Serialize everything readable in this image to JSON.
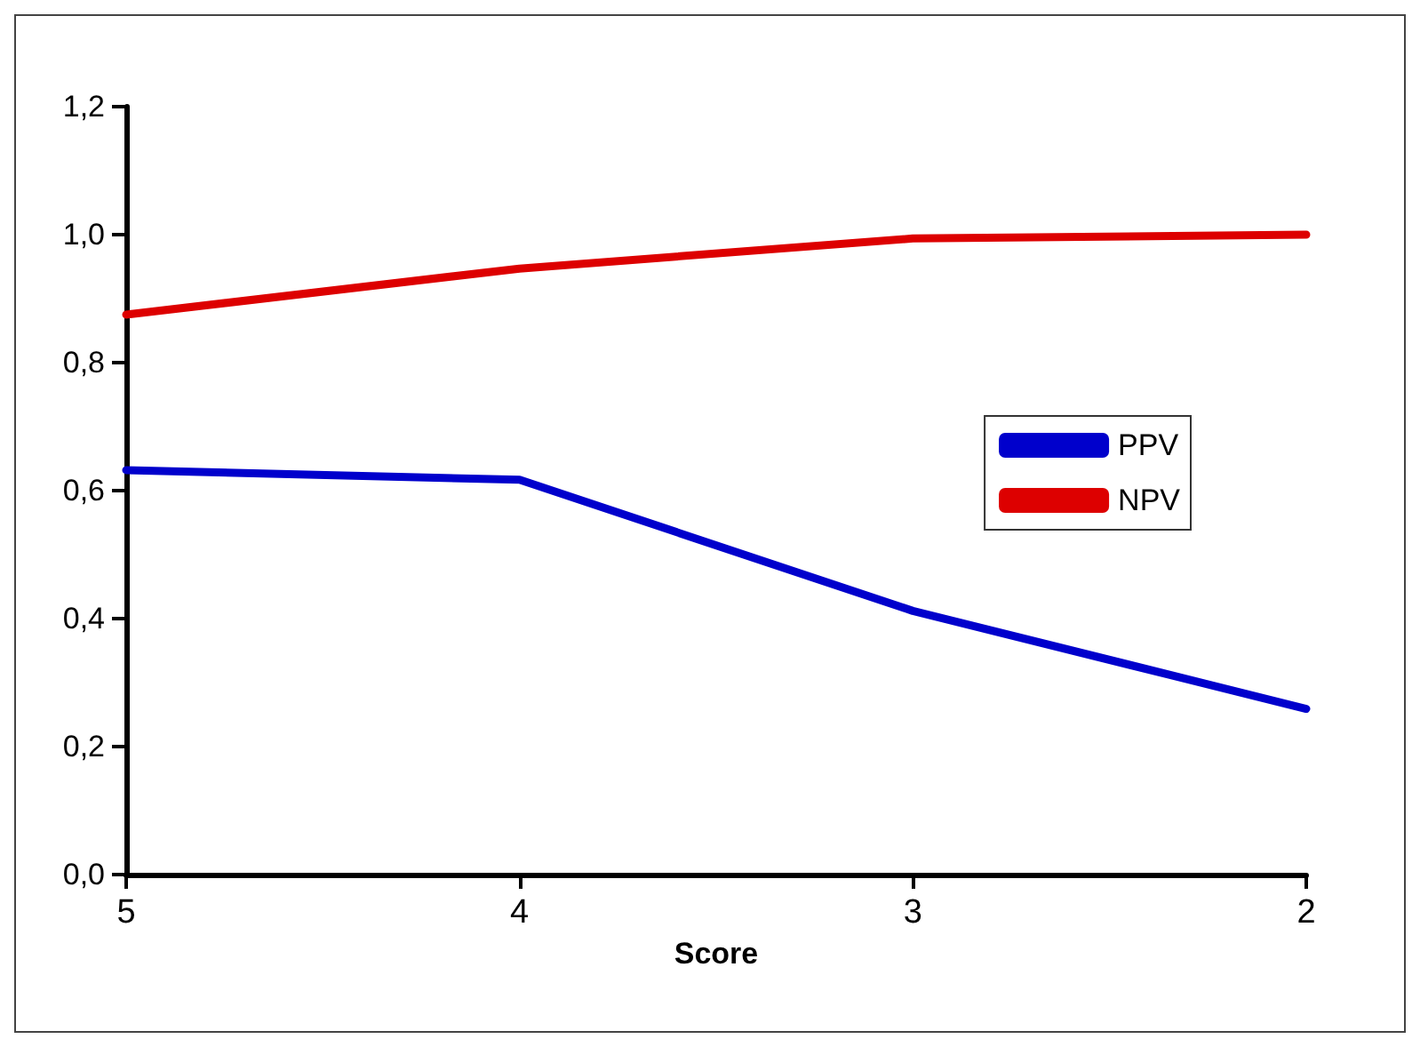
{
  "chart_data": {
    "type": "line",
    "xlabel": "Score",
    "categories": [
      "5",
      "4",
      "3",
      "2"
    ],
    "series": [
      {
        "name": "PPV",
        "color": "#0000cc",
        "values": [
          0.632,
          0.617,
          0.412,
          0.259
        ]
      },
      {
        "name": "NPV",
        "color": "#dd0000",
        "values": [
          0.875,
          0.947,
          0.994,
          1.0
        ]
      }
    ],
    "ylim": [
      0,
      1.2
    ],
    "yticks": [
      {
        "value": 0,
        "label": "0,0"
      },
      {
        "value": 0.2,
        "label": "0,2"
      },
      {
        "value": 0.4,
        "label": "0,4"
      },
      {
        "value": 0.6,
        "label": "0,6"
      },
      {
        "value": 0.8,
        "label": "0,8"
      },
      {
        "value": 1.0,
        "label": "1,0"
      },
      {
        "value": 1.2,
        "label": "1,2"
      }
    ],
    "grid": false,
    "legend": "right",
    "marker": "none",
    "line_style": "solid"
  }
}
